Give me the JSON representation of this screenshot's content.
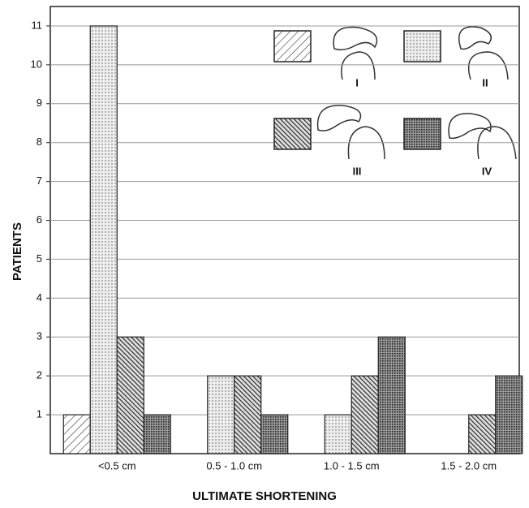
{
  "chart_data": {
    "type": "bar",
    "x_label": "ULTIMATE SHORTENING",
    "y_label": "PATIENTS",
    "categories": [
      "<0.5 cm",
      "0.5 - 1.0 cm",
      "1.0 - 1.5 cm",
      "1.5 - 2.0 cm"
    ],
    "series": [
      {
        "name": "I",
        "color": "#ffffff",
        "values": [
          1,
          0,
          0,
          0
        ]
      },
      {
        "name": "II",
        "color": "#dddddd",
        "values": [
          11,
          2,
          1,
          0
        ]
      },
      {
        "name": "III",
        "color": "#333333",
        "values": [
          3,
          2,
          2,
          1
        ]
      },
      {
        "name": "IV",
        "color": "#555555",
        "values": [
          1,
          1,
          3,
          2
        ]
      }
    ],
    "ylim": [
      0,
      11.5
    ],
    "yticks": [
      1,
      2,
      3,
      4,
      5,
      6,
      7,
      8,
      9,
      10,
      11
    ],
    "grid": true
  }
}
